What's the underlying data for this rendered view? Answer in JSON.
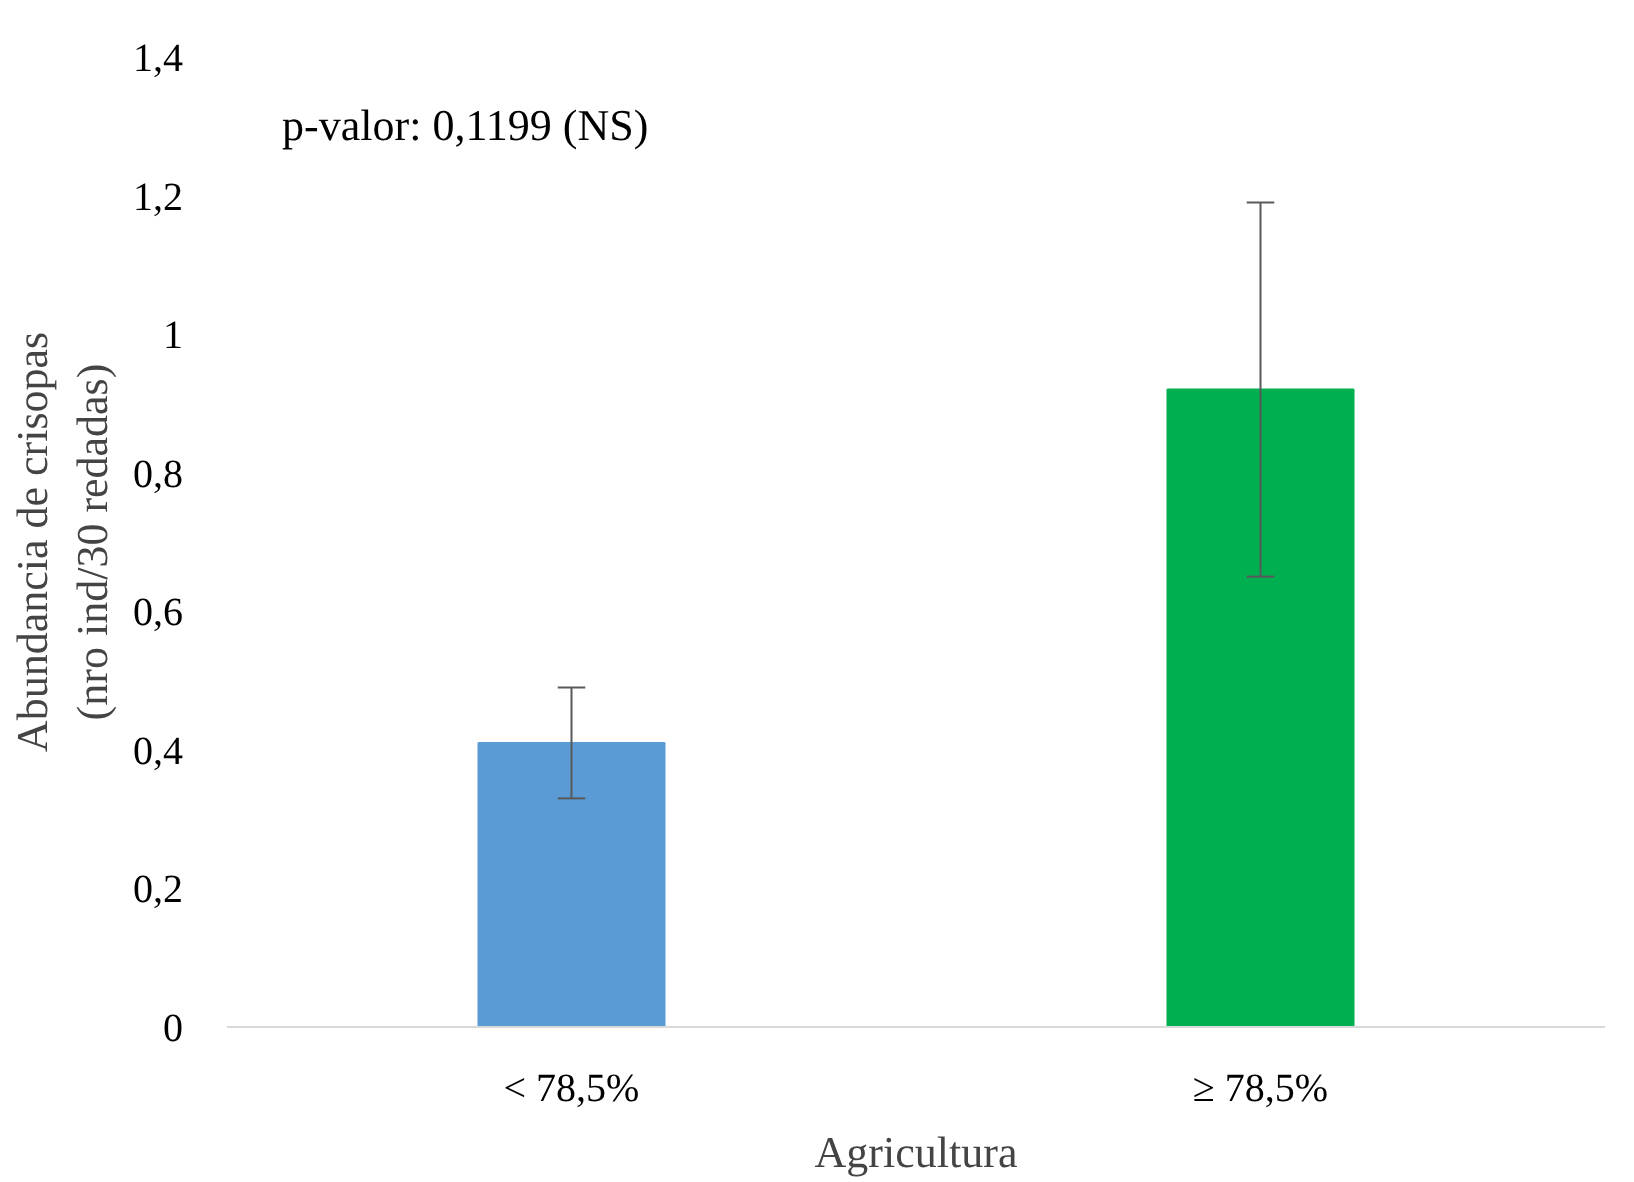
{
  "chart_data": {
    "type": "bar",
    "categories": [
      "< 78,5%",
      "≥ 78,5%"
    ],
    "values": [
      0.41,
      0.92
    ],
    "errors": [
      0.08,
      0.27
    ],
    "colors": [
      "#5b9bd5",
      "#00b050"
    ],
    "xlabel": "Agricultura",
    "ylabel": "Abundancia de crisopas\n(nro ind/30 redadas)",
    "ylim": [
      0,
      1.4
    ],
    "yticks": [
      {
        "value": 0,
        "label": "0"
      },
      {
        "value": 0.2,
        "label": "0,2"
      },
      {
        "value": 0.4,
        "label": "0,4"
      },
      {
        "value": 0.6,
        "label": "0,6"
      },
      {
        "value": 0.8,
        "label": "0,8"
      },
      {
        "value": 1,
        "label": "1"
      },
      {
        "value": 1.2,
        "label": "1,2"
      },
      {
        "value": 1.4,
        "label": "1,4"
      }
    ],
    "annotations": [
      "p-valor: 0,1199 (NS)"
    ],
    "grid": false
  }
}
